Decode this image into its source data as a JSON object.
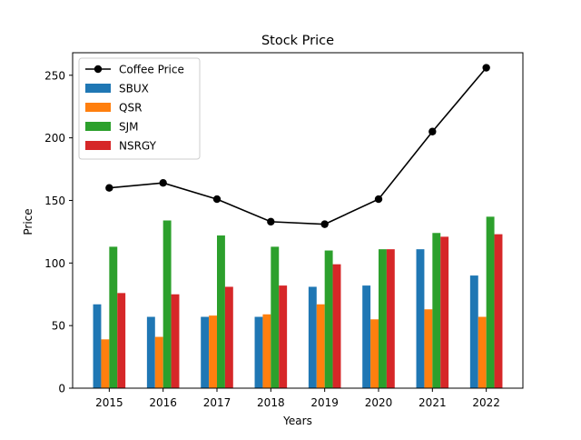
{
  "chart_data": {
    "type": "bar",
    "title": "Stock Price",
    "xlabel": "Years",
    "ylabel": "Price",
    "categories": [
      "2015",
      "2016",
      "2017",
      "2018",
      "2019",
      "2020",
      "2021",
      "2022"
    ],
    "ylim": [
      0,
      268
    ],
    "yticks": [
      0,
      50,
      100,
      150,
      200,
      250
    ],
    "grid": false,
    "legend_position": "upper-left",
    "series": [
      {
        "name": "SBUX",
        "kind": "bar",
        "color": "#1f77b4",
        "values": [
          67,
          57,
          57,
          57,
          81,
          82,
          111,
          90
        ]
      },
      {
        "name": "QSR",
        "kind": "bar",
        "color": "#ff7f0e",
        "values": [
          39,
          41,
          58,
          59,
          67,
          55,
          63,
          57
        ]
      },
      {
        "name": "SJM",
        "kind": "bar",
        "color": "#2ca02c",
        "values": [
          113,
          134,
          122,
          113,
          110,
          111,
          124,
          137
        ]
      },
      {
        "name": "NSRGY",
        "kind": "bar",
        "color": "#d62728",
        "values": [
          76,
          75,
          81,
          82,
          99,
          111,
          121,
          123
        ]
      },
      {
        "name": "Coffee Price",
        "kind": "line",
        "color": "#000000",
        "values": [
          160,
          164,
          151,
          133,
          131,
          151,
          205,
          256
        ]
      }
    ]
  }
}
